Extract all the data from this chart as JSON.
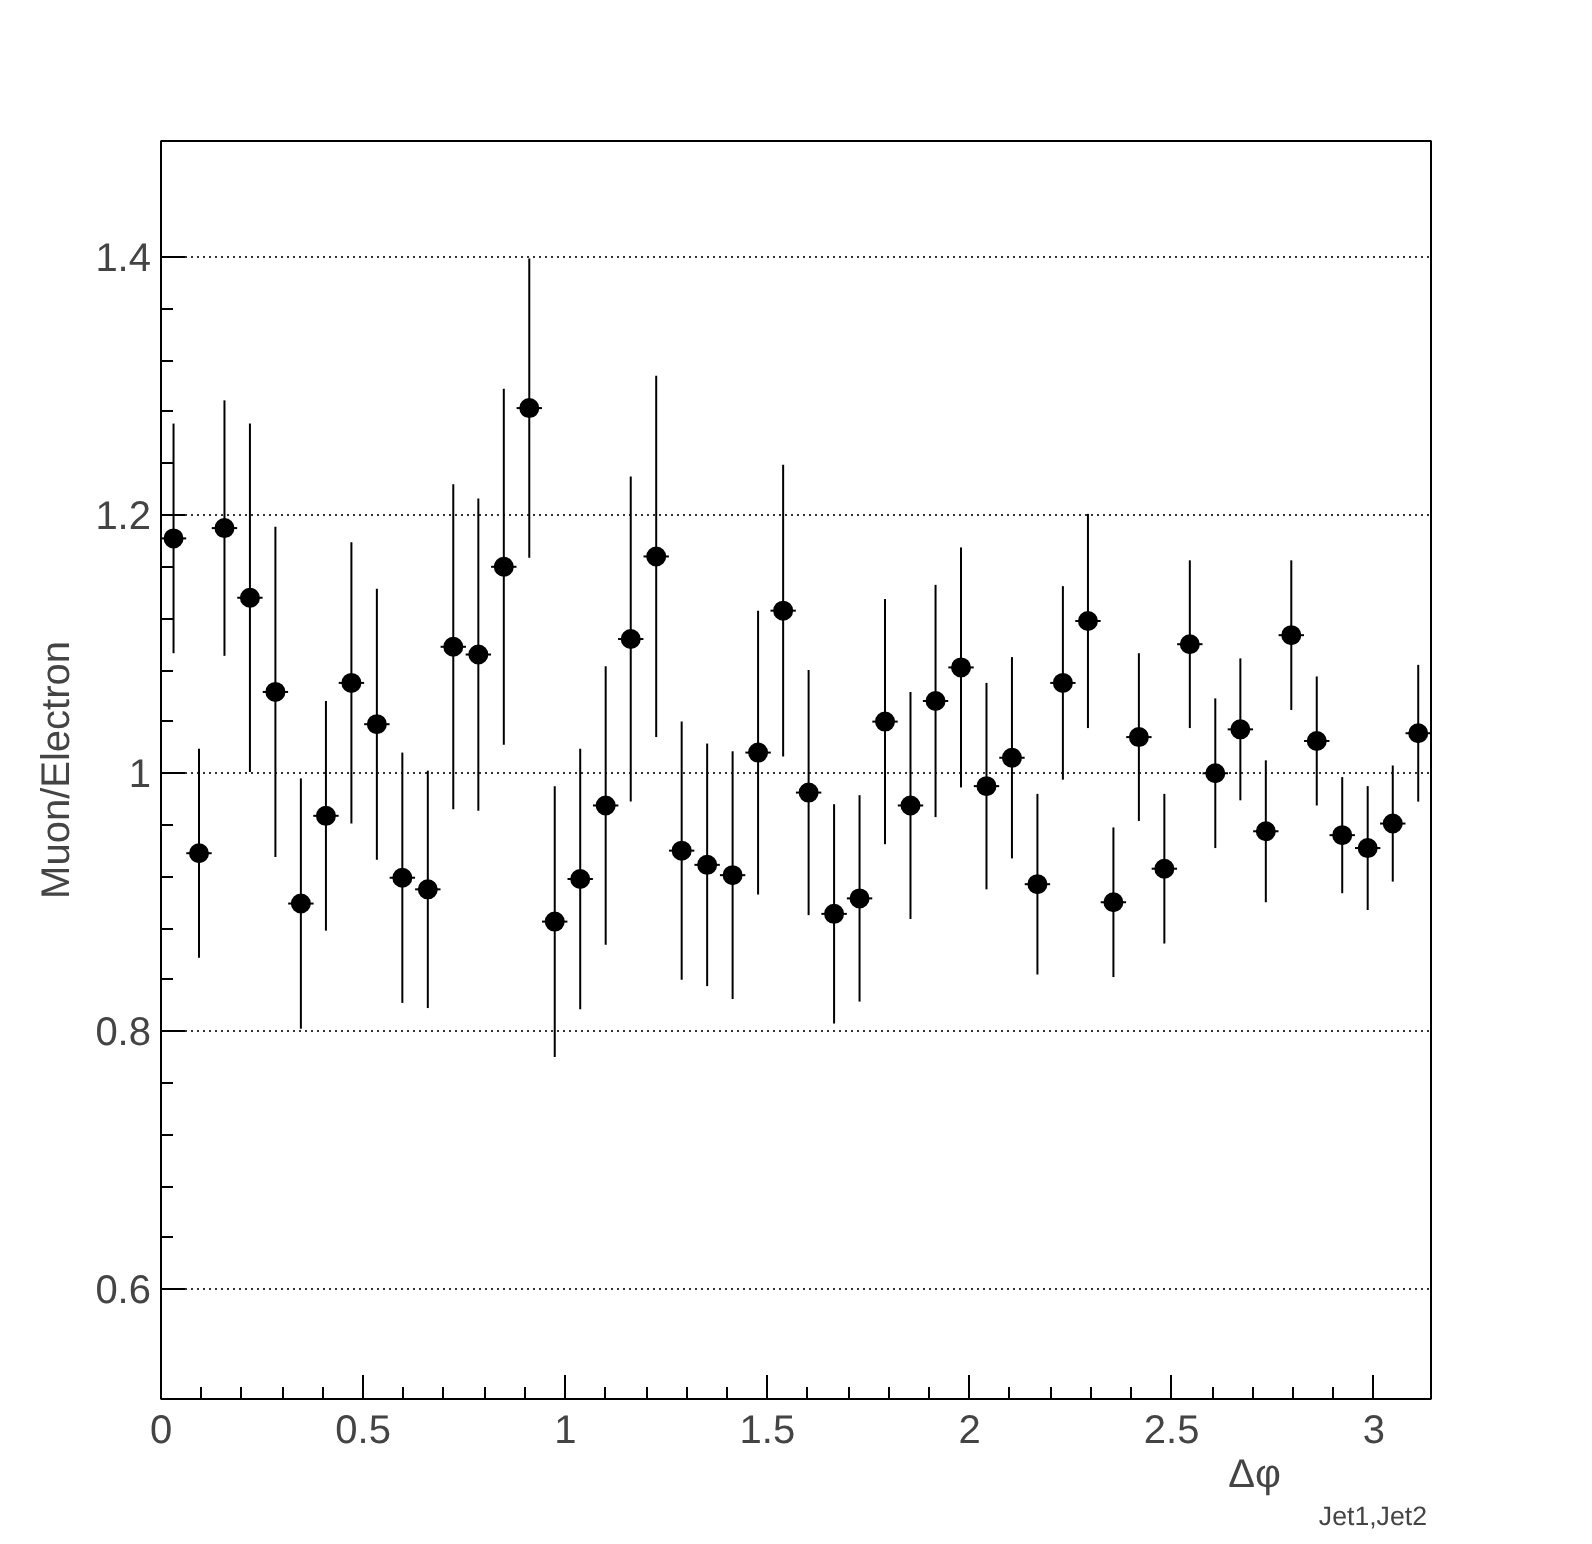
{
  "chart_data": {
    "type": "scatter",
    "xlabel": "Δφ$_{Jet1,Jet2}$",
    "ylabel": "Muon/Electron",
    "x": [
      0.031,
      0.094,
      0.157,
      0.22,
      0.283,
      0.346,
      0.408,
      0.471,
      0.534,
      0.597,
      0.66,
      0.723,
      0.785,
      0.848,
      0.911,
      0.974,
      1.037,
      1.1,
      1.162,
      1.225,
      1.288,
      1.351,
      1.414,
      1.477,
      1.539,
      1.602,
      1.665,
      1.728,
      1.791,
      1.854,
      1.916,
      1.979,
      2.042,
      2.105,
      2.168,
      2.231,
      2.293,
      2.356,
      2.419,
      2.482,
      2.545,
      2.608,
      2.67,
      2.733,
      2.796,
      2.859,
      2.922,
      2.985,
      3.047,
      3.11
    ],
    "series": [
      {
        "color": "#000000",
        "values": [
          1.182,
          0.938,
          1.19,
          1.136,
          1.063,
          0.899,
          0.967,
          1.07,
          1.038,
          0.919,
          0.91,
          1.098,
          1.092,
          1.16,
          1.283,
          0.885,
          0.918,
          0.975,
          1.104,
          1.168,
          0.94,
          0.929,
          0.921,
          1.016,
          1.126,
          0.985,
          0.891,
          0.903,
          1.04,
          0.975,
          1.056,
          1.082,
          0.99,
          1.012,
          0.914,
          1.07,
          1.118,
          0.9,
          1.028,
          0.926,
          1.1,
          1.0,
          1.034,
          0.955,
          1.107,
          1.025,
          0.952,
          0.942,
          0.961,
          1.031
        ],
        "errors": [
          0.089,
          0.081,
          0.099,
          0.135,
          0.128,
          0.097,
          0.089,
          0.109,
          0.105,
          0.097,
          0.092,
          0.126,
          0.121,
          0.138,
          0.116,
          0.105,
          0.101,
          0.108,
          0.126,
          0.14,
          0.1,
          0.094,
          0.096,
          0.11,
          0.113,
          0.095,
          0.085,
          0.08,
          0.095,
          0.088,
          0.09,
          0.093,
          0.08,
          0.078,
          0.07,
          0.075,
          0.083,
          0.058,
          0.065,
          0.058,
          0.065,
          0.058,
          0.055,
          0.055,
          0.058,
          0.05,
          0.045,
          0.048,
          0.045,
          0.053
        ],
        "xerrors": [
          0.0314,
          0.0314,
          0.0314,
          0.0314,
          0.0314,
          0.0314,
          0.0314,
          0.0314,
          0.0314,
          0.0314,
          0.0314,
          0.0314,
          0.0314,
          0.0314,
          0.0314,
          0.0314,
          0.0314,
          0.0314,
          0.0314,
          0.0314,
          0.0314,
          0.0314,
          0.0314,
          0.0314,
          0.0314,
          0.0314,
          0.0314,
          0.0314,
          0.0314,
          0.0314,
          0.0314,
          0.0314,
          0.0314,
          0.0314,
          0.0314,
          0.0314,
          0.0314,
          0.0314,
          0.0314,
          0.0314,
          0.0314,
          0.0314,
          0.0314,
          0.0314,
          0.0314,
          0.0314,
          0.0314,
          0.0314,
          0.0314,
          0.0314
        ]
      }
    ],
    "xlim": [
      0,
      3.1416
    ],
    "ylim": [
      0.515,
      1.49
    ],
    "xticks": [
      0,
      0.5,
      1,
      1.5,
      2,
      2.5,
      3
    ],
    "yticks": [
      0.6,
      0.8,
      {
        "value": 1,
        "label": "1"
      },
      1.2,
      1.4
    ],
    "grid": "y",
    "marker": "circle"
  }
}
